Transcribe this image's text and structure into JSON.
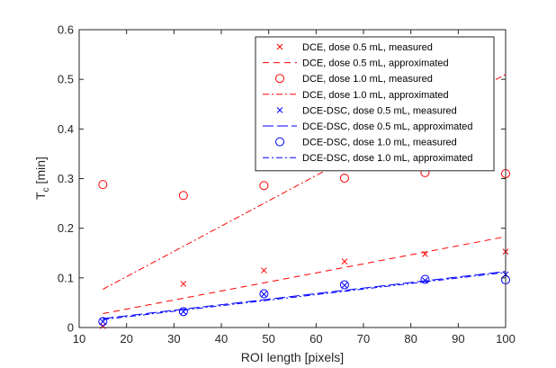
{
  "chart_data": {
    "type": "scatter",
    "title": "",
    "xlabel": "ROI length [pixels]",
    "ylabel": {
      "base": "T",
      "subscript": "c",
      "unit": " [min]"
    },
    "xlim": [
      10,
      100
    ],
    "ylim": [
      0,
      0.6
    ],
    "xticks": [
      "10",
      "20",
      "30",
      "40",
      "50",
      "60",
      "70",
      "80",
      "90",
      "100"
    ],
    "yticks": [
      "0",
      "0.1",
      "0.2",
      "0.3",
      "0.4",
      "0.5",
      "0.6"
    ],
    "grid": false,
    "legend_position": "top-right",
    "series": [
      {
        "name": "DCE, dose 0.5 mL, measured",
        "kind": "points",
        "marker": "x",
        "color": "#ff0000",
        "x": [
          15,
          32,
          49,
          66,
          83,
          100
        ],
        "y": [
          0.003,
          0.088,
          0.115,
          0.133,
          0.148,
          0.153
        ]
      },
      {
        "name": "DCE, dose 0.5 mL, approximated",
        "kind": "line",
        "dash": "dashed",
        "color": "#ff0000",
        "x": [
          15,
          100
        ],
        "y": [
          0.028,
          0.183
        ]
      },
      {
        "name": "DCE, dose 1.0 mL, measured",
        "kind": "points",
        "marker": "o",
        "color": "#ff0000",
        "x": [
          15,
          32,
          49,
          66,
          83,
          100
        ],
        "y": [
          0.288,
          0.266,
          0.286,
          0.301,
          0.312,
          0.31
        ]
      },
      {
        "name": "DCE, dose 1.0 mL, approximated",
        "kind": "line",
        "dash": "dashdot",
        "color": "#ff0000",
        "x": [
          15,
          100
        ],
        "y": [
          0.077,
          0.51
        ]
      },
      {
        "name": "DCE-DSC, dose 0.5 mL, measured",
        "kind": "points",
        "marker": "x",
        "color": "#0000ff",
        "x": [
          15,
          32,
          49,
          66,
          83,
          100
        ],
        "y": [
          0.012,
          0.032,
          0.067,
          0.085,
          0.095,
          0.107
        ]
      },
      {
        "name": "DCE-DSC, dose 0.5 mL, approximated",
        "kind": "line",
        "dash": "longdash",
        "color": "#0000ff",
        "x": [
          15,
          100
        ],
        "y": [
          0.018,
          0.113
        ]
      },
      {
        "name": "DCE-DSC, dose 1.0 mL, measured",
        "kind": "points",
        "marker": "o",
        "color": "#0000ff",
        "x": [
          15,
          32,
          49,
          66,
          83,
          100
        ],
        "y": [
          0.012,
          0.032,
          0.068,
          0.086,
          0.097,
          0.096
        ]
      },
      {
        "name": "DCE-DSC, dose 1.0 mL, approximated",
        "kind": "line",
        "dash": "dashdot",
        "color": "#0000ff",
        "x": [
          15,
          100
        ],
        "y": [
          0.016,
          0.111
        ]
      }
    ]
  }
}
